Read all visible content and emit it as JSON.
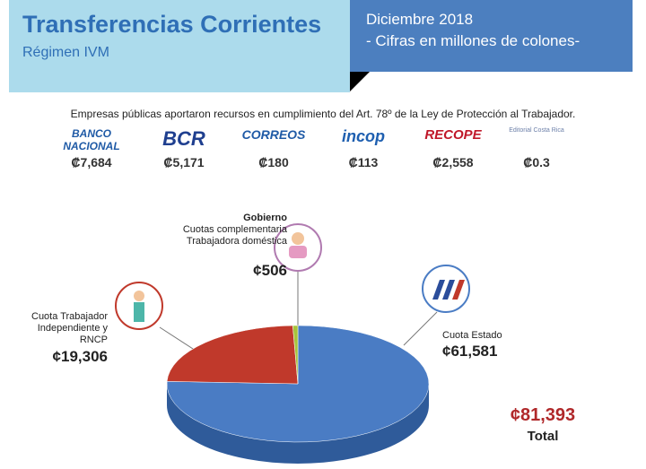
{
  "header": {
    "title": "Transferencias Corrientes",
    "subtitle": "Régimen IVM",
    "date": "Diciembre 2018",
    "note": "- Cifras en millones de colones-"
  },
  "companies": {
    "intro": "Empresas públicas aportaron recursos en cumplimiento  del Art. 78º de la Ley de Protección al Trabajador.",
    "items": [
      {
        "name": "BANCO NACIONAL",
        "value": 7684,
        "value_label": "₡7,684"
      },
      {
        "name": "BCR",
        "value": 5171,
        "value_label": "₡5,171"
      },
      {
        "name": "CORREOS",
        "value": 180,
        "value_label": "₡180"
      },
      {
        "name": "incop",
        "value": 113,
        "value_label": "₡113"
      },
      {
        "name": "RECOPE",
        "value": 2558,
        "value_label": "₡2,558"
      },
      {
        "name": "Editorial Costa Rica",
        "value": 0.3,
        "value_label": "₡0.3"
      }
    ]
  },
  "chart_data": {
    "type": "pie",
    "categories": [
      "Cuota Estado",
      "Cuota Trabajador Independiente y RNCP",
      "Cuotas complementaria Trabajadora doméstica"
    ],
    "values": [
      61581,
      19306,
      506
    ],
    "value_labels": [
      "¢61,581",
      "¢19,306",
      "¢506"
    ],
    "colors": [
      "#4a7cc4",
      "#c0392b",
      "#a7c43c"
    ],
    "group_label": "Gobierno",
    "total": 81393,
    "total_label": "¢81,393",
    "total_caption": "Total"
  }
}
